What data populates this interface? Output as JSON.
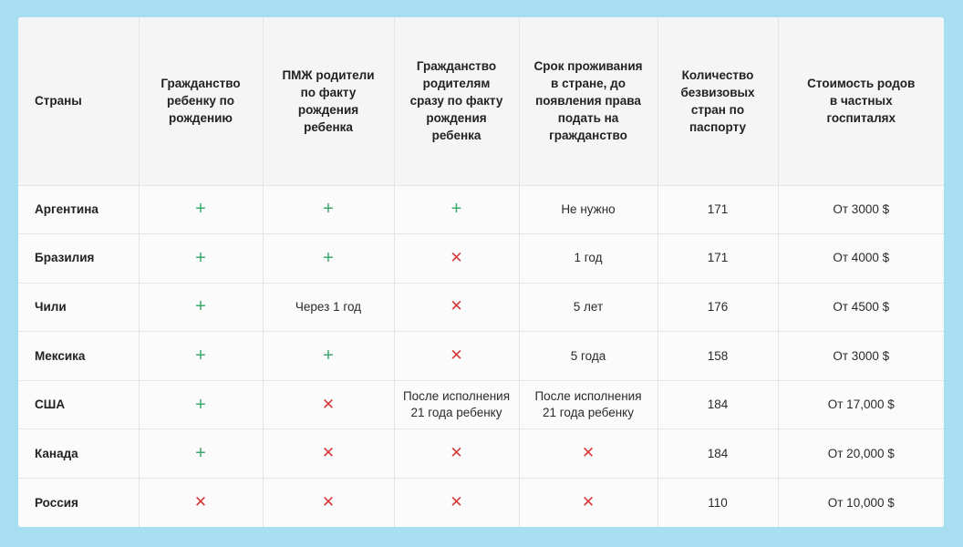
{
  "colors": {
    "background": "#a8dff0",
    "header_bg": "#f5f5f5",
    "plus": "#3aa86b",
    "cross": "#d63a3a"
  },
  "icons": {
    "yes": "plus-icon",
    "no": "cross-icon",
    "plus_glyph": "+",
    "cross_glyph": "✕"
  },
  "table": {
    "headers": [
      "Страны",
      "Гражданство ребенку по рождению",
      "ПМЖ родители по факту рождения ребенка",
      "Гражданство родителям сразу по факту рождения ребенка",
      "Срок проживания в стране, до появления права подать на гражданство",
      "Количество безвизовых стран по паспорту",
      "Стоимость родов в частных госпиталях"
    ],
    "rows": [
      {
        "country": "Аргентина",
        "cells": [
          {
            "icon": "plus"
          },
          {
            "icon": "plus"
          },
          {
            "icon": "plus"
          },
          {
            "text": "Не нужно"
          },
          {
            "text": "171"
          },
          {
            "text": "От 3000 $"
          }
        ]
      },
      {
        "country": "Бразилия",
        "cells": [
          {
            "icon": "plus"
          },
          {
            "icon": "plus"
          },
          {
            "icon": "cross"
          },
          {
            "text": "1 год"
          },
          {
            "text": "171"
          },
          {
            "text": "От 4000 $"
          }
        ]
      },
      {
        "country": "Чили",
        "cells": [
          {
            "icon": "plus"
          },
          {
            "text": "Через 1 год"
          },
          {
            "icon": "cross"
          },
          {
            "text": "5 лет"
          },
          {
            "text": "176"
          },
          {
            "text": "От 4500 $"
          }
        ]
      },
      {
        "country": "Мексика",
        "cells": [
          {
            "icon": "plus"
          },
          {
            "icon": "plus"
          },
          {
            "icon": "cross"
          },
          {
            "text": "5 года"
          },
          {
            "text": "158"
          },
          {
            "text": "От 3000 $"
          }
        ]
      },
      {
        "country": "США",
        "cells": [
          {
            "icon": "plus"
          },
          {
            "icon": "cross"
          },
          {
            "text": "После исполнения 21 года ребенку"
          },
          {
            "text": "После исполнения 21 года ребенку"
          },
          {
            "text": "184"
          },
          {
            "text": "От 17,000 $"
          }
        ]
      },
      {
        "country": "Канада",
        "cells": [
          {
            "icon": "plus"
          },
          {
            "icon": "cross"
          },
          {
            "icon": "cross"
          },
          {
            "icon": "cross"
          },
          {
            "text": "184"
          },
          {
            "text": "От 20,000 $"
          }
        ]
      },
      {
        "country": "Россия",
        "cells": [
          {
            "icon": "cross"
          },
          {
            "icon": "cross"
          },
          {
            "icon": "cross"
          },
          {
            "icon": "cross"
          },
          {
            "text": "110"
          },
          {
            "text": "От 10,000 $"
          }
        ]
      }
    ]
  }
}
